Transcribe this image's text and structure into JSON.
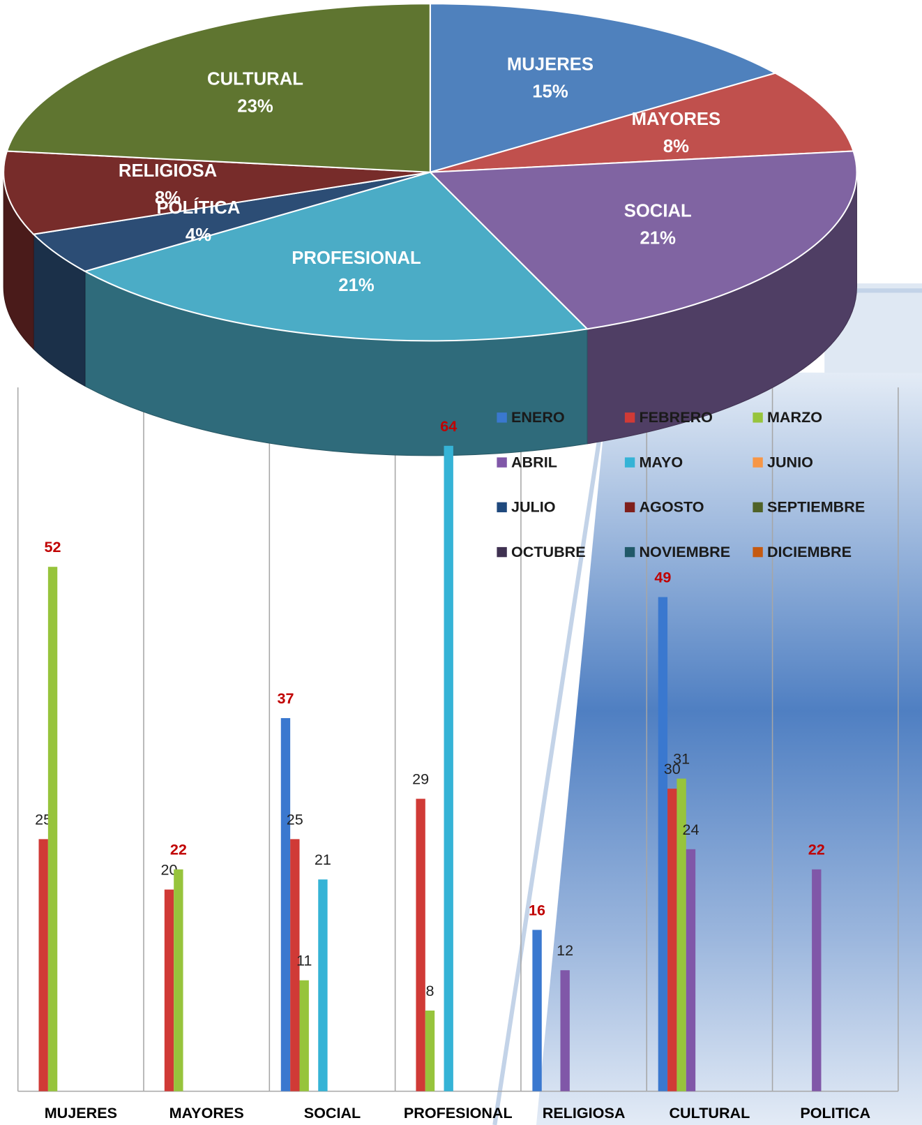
{
  "chart_data": [
    {
      "type": "pie",
      "categories": [
        "MUJERES",
        "MAYORES",
        "SOCIAL",
        "PROFESIONAL",
        "POLÍTICA",
        "RELIGIOSA",
        "CULTURAL"
      ],
      "values": [
        15,
        8,
        21,
        21,
        4,
        8,
        23
      ],
      "value_labels": [
        "15%",
        "8%",
        "21%",
        "21%",
        "4%",
        "8%",
        "23%"
      ],
      "colors": [
        "#4f81bd",
        "#c0504d",
        "#8064a2",
        "#4bacc6",
        "#2c4d75",
        "#772c2a",
        "#5f7530"
      ]
    },
    {
      "type": "bar",
      "categories": [
        "MUJERES",
        "MAYORES",
        "SOCIAL",
        "PROFESIONAL",
        "RELIGIOSA",
        "CULTURAL",
        "POLITICA"
      ],
      "ylim": [
        0,
        70
      ],
      "legend": "top-right",
      "series": [
        {
          "name": "ENERO",
          "color": "#3a78cf",
          "values": [
            null,
            null,
            37,
            null,
            16,
            49,
            null
          ]
        },
        {
          "name": "FEBRERO",
          "color": "#d03a36",
          "values": [
            25,
            20,
            25,
            29,
            null,
            30,
            null
          ]
        },
        {
          "name": "MARZO",
          "color": "#97c43c",
          "values": [
            52,
            22,
            11,
            8,
            null,
            31,
            null
          ]
        },
        {
          "name": "ABRIL",
          "color": "#8057a8",
          "values": [
            null,
            null,
            null,
            null,
            12,
            24,
            22
          ]
        },
        {
          "name": "MAYO",
          "color": "#35b3d6",
          "values": [
            null,
            null,
            21,
            64,
            null,
            null,
            null
          ]
        },
        {
          "name": "JUNIO",
          "color": "#f79646",
          "values": [
            null,
            null,
            null,
            null,
            null,
            null,
            null
          ]
        },
        {
          "name": "JULIO",
          "color": "#1f497d",
          "values": [
            null,
            null,
            null,
            null,
            null,
            null,
            null
          ]
        },
        {
          "name": "AGOSTO",
          "color": "#7f1f1c",
          "values": [
            null,
            null,
            null,
            null,
            null,
            null,
            null
          ]
        },
        {
          "name": "SEPTIEMBRE",
          "color": "#4f6228",
          "values": [
            null,
            null,
            null,
            null,
            null,
            null,
            null
          ]
        },
        {
          "name": "OCTUBRE",
          "color": "#3f3151",
          "values": [
            null,
            null,
            null,
            null,
            null,
            null,
            null
          ]
        },
        {
          "name": "NOVIEMBRE",
          "color": "#215968",
          "values": [
            null,
            null,
            null,
            null,
            null,
            null,
            null
          ]
        },
        {
          "name": "DICIEMBRE",
          "color": "#c55a11",
          "values": [
            null,
            null,
            null,
            null,
            null,
            null,
            null
          ]
        }
      ]
    }
  ]
}
